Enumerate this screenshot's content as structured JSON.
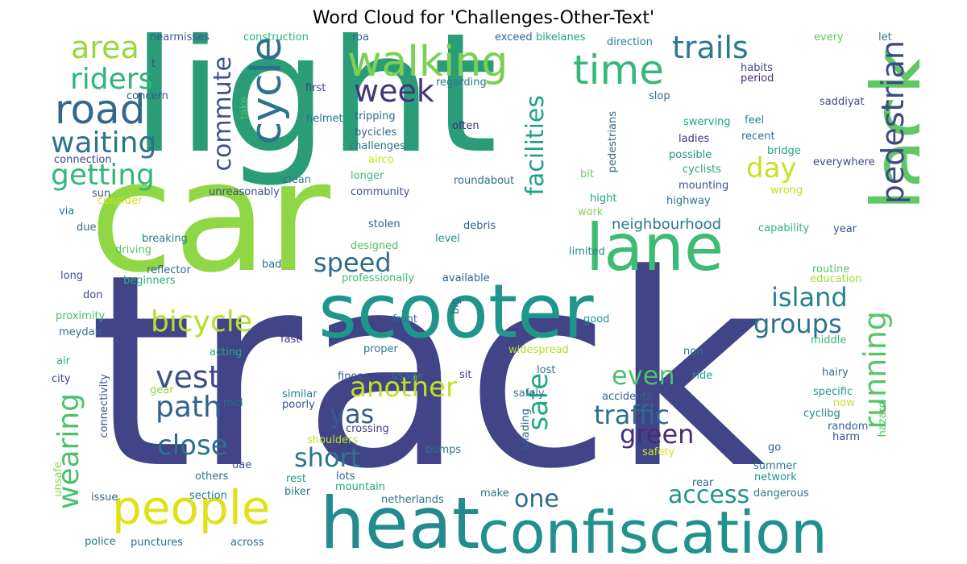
{
  "title": "Word Cloud for 'Challenges-Other-Text'",
  "words": [
    {
      "text": "track",
      "color": "#414487"
    },
    {
      "text": "light",
      "color": "#2a9c78"
    },
    {
      "text": "car",
      "color": "#8fd744"
    },
    {
      "text": "scooter",
      "color": "#1f968b"
    },
    {
      "text": "heat",
      "color": "#238a8d"
    },
    {
      "text": "confiscation",
      "color": "#21918c"
    },
    {
      "text": "lack",
      "color": "#5ec962"
    },
    {
      "text": "lane",
      "color": "#3fbc73"
    },
    {
      "text": "people",
      "color": "#dde318"
    },
    {
      "text": "walking",
      "color": "#7ad151"
    },
    {
      "text": "road",
      "color": "#31688e"
    },
    {
      "text": "cycle",
      "color": "#2c718e"
    },
    {
      "text": "time",
      "color": "#37b878"
    },
    {
      "text": "pedestrian",
      "color": "#3e4989"
    },
    {
      "text": "running",
      "color": "#56c667"
    },
    {
      "text": "trails",
      "color": "#2a788e"
    },
    {
      "text": "area",
      "color": "#95d840"
    },
    {
      "text": "riders",
      "color": "#2fb47c"
    },
    {
      "text": "waiting",
      "color": "#2c738e"
    },
    {
      "text": "getting",
      "color": "#35b779"
    },
    {
      "text": "week",
      "color": "#46337e"
    },
    {
      "text": "commute",
      "color": "#3b528b"
    },
    {
      "text": "facilities",
      "color": "#1f9f88"
    },
    {
      "text": "day",
      "color": "#c8e020"
    },
    {
      "text": "bicycle",
      "color": "#b5de2b"
    },
    {
      "text": "speed",
      "color": "#306a8e"
    },
    {
      "text": "island",
      "color": "#26828e"
    },
    {
      "text": "groups",
      "color": "#2c728e"
    },
    {
      "text": "vest",
      "color": "#3e4c8a"
    },
    {
      "text": "path",
      "color": "#33638d"
    },
    {
      "text": "close",
      "color": "#2d708e"
    },
    {
      "text": "wearing",
      "color": "#4ac16d"
    },
    {
      "text": "another",
      "color": "#c2df23"
    },
    {
      "text": "even",
      "color": "#4ac16d"
    },
    {
      "text": "yas",
      "color": "#365c8d"
    },
    {
      "text": "short",
      "color": "#2b758e"
    },
    {
      "text": "safe",
      "color": "#22a785"
    },
    {
      "text": "one",
      "color": "#2f6c8e"
    },
    {
      "text": "traffic",
      "color": "#2f6b8e"
    },
    {
      "text": "green",
      "color": "#472c7a"
    },
    {
      "text": "access",
      "color": "#1f948c"
    },
    {
      "text": "neighbourhood",
      "color": "#2a778e"
    },
    {
      "text": "nearmisses",
      "color": "#38598c"
    },
    {
      "text": "construction",
      "color": "#2ab07f"
    },
    {
      "text": "roa",
      "color": "#31688e"
    },
    {
      "text": "exceed",
      "color": "#30698e"
    },
    {
      "text": "bikelanes",
      "color": "#20a386"
    },
    {
      "text": "direction",
      "color": "#25858e"
    },
    {
      "text": "every",
      "color": "#5ec962"
    },
    {
      "text": "let",
      "color": "#2c738e"
    },
    {
      "text": "t",
      "color": "#3e4989"
    },
    {
      "text": "habits",
      "color": "#414487"
    },
    {
      "text": "period",
      "color": "#472d7b"
    },
    {
      "text": "first",
      "color": "#3f4889"
    },
    {
      "text": "regarding",
      "color": "#2a788e"
    },
    {
      "text": "concern",
      "color": "#365c8d"
    },
    {
      "text": "slop",
      "color": "#2c728e"
    },
    {
      "text": "saddiyat",
      "color": "#3f4788"
    },
    {
      "text": "helmet",
      "color": "#2e6f8e"
    },
    {
      "text": "tripping",
      "color": "#306a8e"
    },
    {
      "text": "take",
      "color": "#4ec36b"
    },
    {
      "text": "pedestrians",
      "color": "#31688e"
    },
    {
      "text": "swerving",
      "color": "#1fa188"
    },
    {
      "text": "feel",
      "color": "#26818e"
    },
    {
      "text": "often",
      "color": "#472a7a"
    },
    {
      "text": "bycicles",
      "color": "#32648e"
    },
    {
      "text": "ladies",
      "color": "#46307e"
    },
    {
      "text": "recent",
      "color": "#2e6e8e"
    },
    {
      "text": "challenges",
      "color": "#2c728e"
    },
    {
      "text": "possible",
      "color": "#1f958b"
    },
    {
      "text": "bridge",
      "color": "#20a486"
    },
    {
      "text": "connection",
      "color": "#3e4a89"
    },
    {
      "text": "airco",
      "color": "#d2e21b"
    },
    {
      "text": "cyclists",
      "color": "#22a884"
    },
    {
      "text": "everywhere",
      "color": "#3f4889"
    },
    {
      "text": "clean",
      "color": "#2a788e"
    },
    {
      "text": "longer",
      "color": "#3dbc74"
    },
    {
      "text": "bit",
      "color": "#65cb5e"
    },
    {
      "text": "mounting",
      "color": "#3c508b"
    },
    {
      "text": "roundabout",
      "color": "#2e6d8e"
    },
    {
      "text": "sun",
      "color": "#375a8c"
    },
    {
      "text": "unreasonably",
      "color": "#3d4e8a"
    },
    {
      "text": "community",
      "color": "#3a548c"
    },
    {
      "text": "wrong",
      "color": "#c5e021"
    },
    {
      "text": "consider",
      "color": "#d0e11c"
    },
    {
      "text": "hight",
      "color": "#1fa287"
    },
    {
      "text": "highway",
      "color": "#2a768e"
    },
    {
      "text": "via",
      "color": "#2d708e"
    },
    {
      "text": "work",
      "color": "#7fd34e"
    },
    {
      "text": "due",
      "color": "#32658e"
    },
    {
      "text": "stolen",
      "color": "#365c8d"
    },
    {
      "text": "debris",
      "color": "#365d8d"
    },
    {
      "text": "capability",
      "color": "#2db27d"
    },
    {
      "text": "year",
      "color": "#3b528b"
    },
    {
      "text": "breaking",
      "color": "#27808e"
    },
    {
      "text": "level",
      "color": "#1f988b"
    },
    {
      "text": "driving",
      "color": "#52c569"
    },
    {
      "text": "designed",
      "color": "#4ac16d"
    },
    {
      "text": "limited",
      "color": "#24868e"
    },
    {
      "text": "reflector",
      "color": "#31678e"
    },
    {
      "text": "long",
      "color": "#3b528b"
    },
    {
      "text": "bad",
      "color": "#306a8e"
    },
    {
      "text": "beginners",
      "color": "#27ad81"
    },
    {
      "text": "professionally",
      "color": "#3dbc74"
    },
    {
      "text": "available",
      "color": "#33628d"
    },
    {
      "text": "routine",
      "color": "#52c569"
    },
    {
      "text": "education",
      "color": "#a2da37"
    },
    {
      "text": "don",
      "color": "#3e4989"
    },
    {
      "text": "proximity",
      "color": "#3dbc74"
    },
    {
      "text": "big",
      "color": "#34618d"
    },
    {
      "text": "front",
      "color": "#306a8e"
    },
    {
      "text": "good",
      "color": "#1f988b"
    },
    {
      "text": "meydan",
      "color": "#2c728e"
    },
    {
      "text": "fast",
      "color": "#46307e"
    },
    {
      "text": "proper",
      "color": "#2a788e"
    },
    {
      "text": "widespread",
      "color": "#b8de29"
    },
    {
      "text": "non",
      "color": "#2c738e"
    },
    {
      "text": "middle",
      "color": "#35b779"
    },
    {
      "text": "air",
      "color": "#29af7f"
    },
    {
      "text": "acting",
      "color": "#22a884"
    },
    {
      "text": "city",
      "color": "#3e4c8a"
    },
    {
      "text": "fines",
      "color": "#365c8d"
    },
    {
      "text": "usage",
      "color": "#2d708e"
    },
    {
      "text": "sit",
      "color": "#433e85"
    },
    {
      "text": "lost",
      "color": "#2d708e"
    },
    {
      "text": "ride",
      "color": "#1e9b8a"
    },
    {
      "text": "hairy",
      "color": "#306a8e"
    },
    {
      "text": "gear",
      "color": "#8fd744"
    },
    {
      "text": "similar",
      "color": "#26828e"
    },
    {
      "text": "safely",
      "color": "#2c728e"
    },
    {
      "text": "accidents",
      "color": "#31688e"
    },
    {
      "text": "specific",
      "color": "#1f988b"
    },
    {
      "text": "connectivity",
      "color": "#3b528b"
    },
    {
      "text": "poorly",
      "color": "#3a548c"
    },
    {
      "text": "now",
      "color": "#c8e020"
    },
    {
      "text": "mid",
      "color": "#2c728e"
    },
    {
      "text": "crossing",
      "color": "#443a83"
    },
    {
      "text": "shading",
      "color": "#33638d"
    },
    {
      "text": "random",
      "color": "#34608d"
    },
    {
      "text": "cyclibg",
      "color": "#24868e"
    },
    {
      "text": "hazard",
      "color": "#4ec36b"
    },
    {
      "text": "harm",
      "color": "#3b528b"
    },
    {
      "text": "shoulders",
      "color": "#c2df23"
    },
    {
      "text": "bumps",
      "color": "#2d708e"
    },
    {
      "text": "safety",
      "color": "#d2e21b"
    },
    {
      "text": "go",
      "color": "#33638d"
    },
    {
      "text": "unsafe",
      "color": "#8bd646"
    },
    {
      "text": "uae",
      "color": "#3b528b"
    },
    {
      "text": "summer",
      "color": "#2a788e"
    },
    {
      "text": "others",
      "color": "#2c738e"
    },
    {
      "text": "rest",
      "color": "#1f9a8a"
    },
    {
      "text": "lots",
      "color": "#31688e"
    },
    {
      "text": "network",
      "color": "#1f978b"
    },
    {
      "text": "rear",
      "color": "#306a8e"
    },
    {
      "text": "issue",
      "color": "#31688e"
    },
    {
      "text": "section",
      "color": "#2a788e"
    },
    {
      "text": "biker",
      "color": "#2b758e"
    },
    {
      "text": "mountain",
      "color": "#22a785"
    },
    {
      "text": "make",
      "color": "#2c728e"
    },
    {
      "text": "dangerous",
      "color": "#2c738e"
    },
    {
      "text": "netherlands",
      "color": "#2a788e"
    },
    {
      "text": "police",
      "color": "#2b758e"
    },
    {
      "text": "punctures",
      "color": "#31688e"
    },
    {
      "text": "across",
      "color": "#306a8e"
    }
  ]
}
